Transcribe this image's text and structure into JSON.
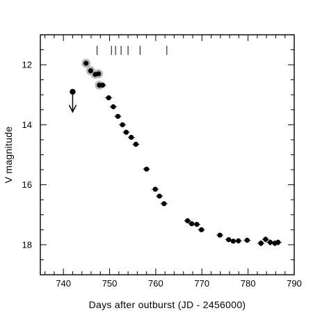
{
  "chart_data": {
    "type": "scatter",
    "xlabel": "Days after outburst (JD - 2456000)",
    "ylabel": "V magnitude",
    "xlim": [
      735,
      790
    ],
    "ylim": [
      19.0,
      11.0
    ],
    "y_inverted": true,
    "grid": false,
    "x_major_ticks": [
      740,
      750,
      760,
      770,
      780,
      790
    ],
    "y_major_ticks": [
      12,
      14,
      16,
      18
    ],
    "x_tick_labels": [
      "740",
      "750",
      "760",
      "770",
      "780",
      "790"
    ],
    "y_tick_labels": [
      "12",
      "14",
      "16",
      "18"
    ],
    "upper_limit": {
      "x": 742.0,
      "y": 12.9
    },
    "event_markers_x": [
      747.3,
      750.4,
      751.3,
      752.5,
      754.0,
      756.6,
      762.4
    ],
    "highlighted_points": [
      {
        "x": 744.9,
        "y": 11.95
      },
      {
        "x": 745.9,
        "y": 12.2
      },
      {
        "x": 746.9,
        "y": 12.32
      },
      {
        "x": 747.6,
        "y": 12.3
      },
      {
        "x": 747.8,
        "y": 12.68
      }
    ],
    "points": [
      {
        "x": 744.9,
        "y": 11.95,
        "err": 0.04
      },
      {
        "x": 745.9,
        "y": 12.2,
        "err": 0.04
      },
      {
        "x": 746.9,
        "y": 12.32,
        "err": 0.04
      },
      {
        "x": 747.6,
        "y": 12.3,
        "err": 0.04
      },
      {
        "x": 747.8,
        "y": 12.68,
        "err": 0.04
      },
      {
        "x": 748.5,
        "y": 12.68,
        "err": 0.04
      },
      {
        "x": 749.8,
        "y": 13.1,
        "err": 0.04
      },
      {
        "x": 750.8,
        "y": 13.4,
        "err": 0.04
      },
      {
        "x": 751.8,
        "y": 13.72,
        "err": 0.04
      },
      {
        "x": 752.8,
        "y": 14.0,
        "err": 0.04
      },
      {
        "x": 753.6,
        "y": 14.25,
        "err": 0.04
      },
      {
        "x": 754.7,
        "y": 14.42,
        "err": 0.04
      },
      {
        "x": 755.7,
        "y": 14.65,
        "err": 0.04
      },
      {
        "x": 758.0,
        "y": 15.48,
        "err": 0.05
      },
      {
        "x": 759.9,
        "y": 16.15,
        "err": 0.05
      },
      {
        "x": 760.8,
        "y": 16.38,
        "err": 0.05
      },
      {
        "x": 761.8,
        "y": 16.63,
        "err": 0.05
      },
      {
        "x": 766.9,
        "y": 17.2,
        "err": 0.08
      },
      {
        "x": 767.8,
        "y": 17.3,
        "err": 0.08
      },
      {
        "x": 768.9,
        "y": 17.32,
        "err": 0.08
      },
      {
        "x": 769.9,
        "y": 17.5,
        "err": 0.08
      },
      {
        "x": 773.9,
        "y": 17.68,
        "err": 0.08
      },
      {
        "x": 775.8,
        "y": 17.83,
        "err": 0.08
      },
      {
        "x": 776.8,
        "y": 17.88,
        "err": 0.08
      },
      {
        "x": 777.9,
        "y": 17.87,
        "err": 0.08
      },
      {
        "x": 779.8,
        "y": 17.85,
        "err": 0.08
      },
      {
        "x": 782.8,
        "y": 17.95,
        "err": 0.1
      },
      {
        "x": 783.8,
        "y": 17.82,
        "err": 0.1
      },
      {
        "x": 784.8,
        "y": 17.92,
        "err": 0.1
      },
      {
        "x": 785.8,
        "y": 17.95,
        "err": 0.1
      },
      {
        "x": 786.5,
        "y": 17.92,
        "err": 0.1
      }
    ]
  }
}
